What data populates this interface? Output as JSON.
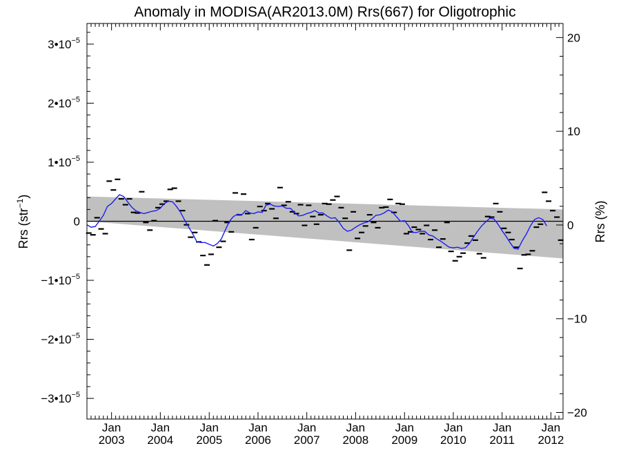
{
  "chart_data": {
    "type": "scatter",
    "title": "Anomaly in MODISA(AR2013.0M) Rrs(667) for Oligotrophic",
    "ylabel_left": {
      "base": "Rrs (str",
      "sup": "−1",
      "end": ")"
    },
    "ylabel_right": "Rrs (%)",
    "ylim_left": [
      -3.35e-05,
      3.35e-05
    ],
    "ylim_right": [
      -20.7,
      21.5
    ],
    "xlim": [
      "2002-07-01",
      "2012-04-01"
    ],
    "left_ticks": [
      {
        "value": 3e-05,
        "coef": "3•10",
        "exp": "−5"
      },
      {
        "value": 2e-05,
        "coef": "2•10",
        "exp": "−5"
      },
      {
        "value": 1e-05,
        "coef": "1•10",
        "exp": "−5"
      },
      {
        "value": 0,
        "coef": "0",
        "exp": ""
      },
      {
        "value": -1e-05,
        "coef": "−1•10",
        "exp": "−5"
      },
      {
        "value": -2e-05,
        "coef": "−2•10",
        "exp": "−5"
      },
      {
        "value": -3e-05,
        "coef": "−3•10",
        "exp": "−5"
      }
    ],
    "right_ticks": [
      {
        "value": 20,
        "label": "20"
      },
      {
        "value": 10,
        "label": "10"
      },
      {
        "value": 0,
        "label": "0"
      },
      {
        "value": -10,
        "label": "−10"
      },
      {
        "value": -20,
        "label": "−20"
      }
    ],
    "x_ticks": [
      {
        "date": "2003-01-01",
        "month": "Jan",
        "year": "2003"
      },
      {
        "date": "2004-01-01",
        "month": "Jan",
        "year": "2004"
      },
      {
        "date": "2005-01-01",
        "month": "Jan",
        "year": "2005"
      },
      {
        "date": "2006-01-01",
        "month": "Jan",
        "year": "2006"
      },
      {
        "date": "2007-01-01",
        "month": "Jan",
        "year": "2007"
      },
      {
        "date": "2008-01-01",
        "month": "Jan",
        "year": "2008"
      },
      {
        "date": "2009-01-01",
        "month": "Jan",
        "year": "2009"
      },
      {
        "date": "2010-01-01",
        "month": "Jan",
        "year": "2010"
      },
      {
        "date": "2011-01-01",
        "month": "Jan",
        "year": "2011"
      },
      {
        "date": "2012-01-01",
        "month": "Jan",
        "year": "2012"
      }
    ],
    "zero_line": 0,
    "band": {
      "color": "#c0c0c0",
      "upper": [
        [
          "2002-07-01",
          4.2e-06
        ],
        [
          "2012-04-01",
          2e-06
        ]
      ],
      "lower": [
        [
          "2002-07-01",
          0
        ],
        [
          "2012-04-01",
          -6.3e-06
        ]
      ]
    },
    "series": [
      {
        "style": "dash-markers",
        "color": "#000000",
        "points": [
          [
            "2002-07-15",
            -2e-06
          ],
          [
            "2002-08-15",
            -2.3e-06
          ],
          [
            "2002-09-15",
            6e-07
          ],
          [
            "2002-10-15",
            -1.3e-06
          ],
          [
            "2002-11-15",
            -2.1e-06
          ],
          [
            "2002-12-15",
            6.8e-06
          ],
          [
            "2003-01-15",
            5.3e-06
          ],
          [
            "2003-02-15",
            7.1e-06
          ],
          [
            "2003-03-15",
            3.8e-06
          ],
          [
            "2003-04-15",
            2.8e-06
          ],
          [
            "2003-05-15",
            3.8e-06
          ],
          [
            "2003-06-15",
            1.5e-06
          ],
          [
            "2003-07-15",
            1.4e-06
          ],
          [
            "2003-08-15",
            5e-06
          ],
          [
            "2003-09-15",
            -2e-07
          ],
          [
            "2003-10-15",
            -1.5e-06
          ],
          [
            "2003-11-15",
            1e-07
          ],
          [
            "2003-12-15",
            2.3e-06
          ],
          [
            "2004-01-15",
            2.9e-06
          ],
          [
            "2004-02-15",
            3.4e-06
          ],
          [
            "2004-03-15",
            5.4e-06
          ],
          [
            "2004-04-15",
            5.6e-06
          ],
          [
            "2004-05-15",
            3.4e-06
          ],
          [
            "2004-06-15",
            1.8e-06
          ],
          [
            "2004-07-15",
            -6e-07
          ],
          [
            "2004-08-15",
            -2.7e-06
          ],
          [
            "2004-09-15",
            -1.9e-06
          ],
          [
            "2004-10-15",
            -3.5e-06
          ],
          [
            "2004-11-15",
            -5.8e-06
          ],
          [
            "2004-12-15",
            -7.4e-06
          ],
          [
            "2005-01-15",
            -5.6e-06
          ],
          [
            "2005-02-15",
            1e-07
          ],
          [
            "2005-03-15",
            -4.4e-06
          ],
          [
            "2005-04-15",
            -3.4e-06
          ],
          [
            "2005-05-15",
            -2e-07
          ],
          [
            "2005-06-15",
            -1.8e-06
          ],
          [
            "2005-07-15",
            4.8e-06
          ],
          [
            "2005-08-15",
            1.1e-06
          ],
          [
            "2005-09-15",
            4.6e-06
          ],
          [
            "2005-10-15",
            1.3e-06
          ],
          [
            "2005-11-15",
            -3.1e-06
          ],
          [
            "2005-12-15",
            -1.1e-06
          ],
          [
            "2006-01-15",
            2.5e-06
          ],
          [
            "2006-02-15",
            1.8e-06
          ],
          [
            "2006-03-15",
            3e-06
          ],
          [
            "2006-04-15",
            2.1e-06
          ],
          [
            "2006-05-15",
            5e-07
          ],
          [
            "2006-06-15",
            5.7e-06
          ],
          [
            "2006-07-15",
            2.7e-06
          ],
          [
            "2006-08-15",
            3.3e-06
          ],
          [
            "2006-09-15",
            1.6e-06
          ],
          [
            "2006-10-15",
            1.3e-06
          ],
          [
            "2006-11-15",
            2.8e-06
          ],
          [
            "2006-12-15",
            -7e-07
          ],
          [
            "2007-01-15",
            2.7e-06
          ],
          [
            "2007-02-15",
            8e-07
          ],
          [
            "2007-03-15",
            -5e-07
          ],
          [
            "2007-04-15",
            1.1e-06
          ],
          [
            "2007-05-15",
            3e-06
          ],
          [
            "2007-06-15",
            2.9e-06
          ],
          [
            "2007-07-15",
            3.6e-06
          ],
          [
            "2007-08-15",
            4.2e-06
          ],
          [
            "2007-09-15",
            2.3e-06
          ],
          [
            "2007-10-15",
            5e-07
          ],
          [
            "2007-11-15",
            -4.9e-06
          ],
          [
            "2007-12-15",
            1.6e-06
          ],
          [
            "2008-01-15",
            -2.9e-06
          ],
          [
            "2008-02-15",
            -1.9e-06
          ],
          [
            "2008-03-15",
            -8e-07
          ],
          [
            "2008-04-15",
            1.1e-06
          ],
          [
            "2008-05-15",
            -2e-07
          ],
          [
            "2008-06-15",
            -1.1e-06
          ],
          [
            "2008-07-15",
            2.3e-06
          ],
          [
            "2008-08-15",
            2.4e-06
          ],
          [
            "2008-09-15",
            3.7e-06
          ],
          [
            "2008-10-15",
            1.5e-06
          ],
          [
            "2008-11-15",
            3e-06
          ],
          [
            "2008-12-15",
            2.9e-06
          ],
          [
            "2009-01-15",
            -2.1e-06
          ],
          [
            "2009-02-15",
            -1.8e-06
          ],
          [
            "2009-03-15",
            -1e-06
          ],
          [
            "2009-04-15",
            -1.4e-06
          ],
          [
            "2009-05-15",
            -2.1e-06
          ],
          [
            "2009-06-15",
            -7e-07
          ],
          [
            "2009-07-15",
            -3.1e-06
          ],
          [
            "2009-08-15",
            -1.5e-06
          ],
          [
            "2009-09-15",
            -4.4e-06
          ],
          [
            "2009-10-15",
            -3e-06
          ],
          [
            "2009-11-15",
            -2e-07
          ],
          [
            "2009-12-15",
            -5.1e-06
          ],
          [
            "2010-01-15",
            -6.7e-06
          ],
          [
            "2010-02-15",
            -6e-06
          ],
          [
            "2010-03-15",
            -5.4e-06
          ],
          [
            "2010-04-15",
            -3.7e-06
          ],
          [
            "2010-05-15",
            -2.5e-06
          ],
          [
            "2010-06-15",
            -3.2e-06
          ],
          [
            "2010-07-15",
            -5.5e-06
          ],
          [
            "2010-08-15",
            -6.2e-06
          ],
          [
            "2010-09-15",
            8e-07
          ],
          [
            "2010-10-15",
            7e-07
          ],
          [
            "2010-11-15",
            3e-06
          ],
          [
            "2010-12-15",
            1.6e-06
          ],
          [
            "2011-01-15",
            -1.2e-06
          ],
          [
            "2011-02-15",
            -1.9e-06
          ],
          [
            "2011-03-15",
            -3.1e-06
          ],
          [
            "2011-04-15",
            -4.4e-06
          ],
          [
            "2011-05-15",
            -8e-06
          ],
          [
            "2011-06-15",
            -5.7e-06
          ],
          [
            "2011-07-15",
            -5.6e-06
          ],
          [
            "2011-08-15",
            -5e-06
          ],
          [
            "2011-09-15",
            -1e-06
          ],
          [
            "2011-10-15",
            -5e-07
          ],
          [
            "2011-11-15",
            4.9e-06
          ],
          [
            "2011-12-15",
            3.4e-06
          ],
          [
            "2012-01-15",
            1.8e-06
          ],
          [
            "2012-02-15",
            7e-07
          ],
          [
            "2012-03-15",
            -3.2e-06
          ]
        ]
      },
      {
        "style": "line",
        "color": "#1c1cf0",
        "points": [
          [
            "2002-07-01",
            -6e-07
          ],
          [
            "2002-08-01",
            -1e-06
          ],
          [
            "2002-09-01",
            -9e-07
          ],
          [
            "2002-10-01",
            0.0
          ],
          [
            "2002-11-01",
            1e-06
          ],
          [
            "2002-12-01",
            2.5e-06
          ],
          [
            "2003-01-01",
            3e-06
          ],
          [
            "2003-02-01",
            3.8e-06
          ],
          [
            "2003-03-01",
            4.5e-06
          ],
          [
            "2003-04-01",
            4.2e-06
          ],
          [
            "2003-05-01",
            3.3e-06
          ],
          [
            "2003-06-01",
            2.4e-06
          ],
          [
            "2003-07-01",
            1.8e-06
          ],
          [
            "2003-08-01",
            1.5e-06
          ],
          [
            "2003-09-01",
            1.3e-06
          ],
          [
            "2003-10-01",
            1.5e-06
          ],
          [
            "2003-11-01",
            1.7e-06
          ],
          [
            "2003-12-01",
            1.8e-06
          ],
          [
            "2004-01-01",
            2.2e-06
          ],
          [
            "2004-02-01",
            3e-06
          ],
          [
            "2004-03-01",
            3.4e-06
          ],
          [
            "2004-04-01",
            3.3e-06
          ],
          [
            "2004-05-01",
            2.5e-06
          ],
          [
            "2004-06-01",
            1.5e-06
          ],
          [
            "2004-07-01",
            2e-07
          ],
          [
            "2004-08-01",
            -1e-06
          ],
          [
            "2004-09-01",
            -2.2e-06
          ],
          [
            "2004-10-01",
            -3.5e-06
          ],
          [
            "2004-11-01",
            -3.6e-06
          ],
          [
            "2004-12-01",
            -3.6e-06
          ],
          [
            "2005-01-01",
            -3.9e-06
          ],
          [
            "2005-02-01",
            -4.2e-06
          ],
          [
            "2005-03-01",
            -3.8e-06
          ],
          [
            "2005-04-01",
            -3e-06
          ],
          [
            "2005-05-01",
            -1.5e-06
          ],
          [
            "2005-06-01",
            0.0
          ],
          [
            "2005-07-01",
            8e-07
          ],
          [
            "2005-08-01",
            1.2e-06
          ],
          [
            "2005-09-01",
            1.1e-06
          ],
          [
            "2005-10-01",
            1.8e-06
          ],
          [
            "2005-11-01",
            1.4e-06
          ],
          [
            "2005-12-01",
            1.3e-06
          ],
          [
            "2006-01-01",
            1.6e-06
          ],
          [
            "2006-02-01",
            1.5e-06
          ],
          [
            "2006-03-01",
            2.7e-06
          ],
          [
            "2006-04-01",
            2.9e-06
          ],
          [
            "2006-05-01",
            2.6e-06
          ],
          [
            "2006-06-01",
            2.5e-06
          ],
          [
            "2006-07-01",
            2.6e-06
          ],
          [
            "2006-08-01",
            2.2e-06
          ],
          [
            "2006-09-01",
            2.2e-06
          ],
          [
            "2006-10-01",
            1.5e-06
          ],
          [
            "2006-11-01",
            9e-07
          ],
          [
            "2006-12-01",
            1e-06
          ],
          [
            "2007-01-01",
            1.3e-06
          ],
          [
            "2007-02-01",
            1.5e-06
          ],
          [
            "2007-03-01",
            1.8e-06
          ],
          [
            "2007-04-01",
            1.4e-06
          ],
          [
            "2007-05-01",
            1.4e-06
          ],
          [
            "2007-06-01",
            9e-07
          ],
          [
            "2007-07-01",
            5e-07
          ],
          [
            "2007-08-01",
            6e-07
          ],
          [
            "2007-09-01",
            -2e-07
          ],
          [
            "2007-10-01",
            -1.2e-06
          ],
          [
            "2007-11-01",
            -1.7e-06
          ],
          [
            "2007-12-01",
            -1.5e-06
          ],
          [
            "2008-01-01",
            -1e-06
          ],
          [
            "2008-02-01",
            -6e-07
          ],
          [
            "2008-03-01",
            -3e-07
          ],
          [
            "2008-04-01",
            -1e-07
          ],
          [
            "2008-05-01",
            4e-07
          ],
          [
            "2008-06-01",
            1e-06
          ],
          [
            "2008-07-01",
            1.1e-06
          ],
          [
            "2008-08-01",
            1.4e-06
          ],
          [
            "2008-09-01",
            1.9e-06
          ],
          [
            "2008-10-01",
            1.6e-06
          ],
          [
            "2008-11-01",
            8e-07
          ],
          [
            "2008-12-01",
            0.0
          ],
          [
            "2009-01-01",
            1e-07
          ],
          [
            "2009-02-01",
            -8e-07
          ],
          [
            "2009-03-01",
            -1.9e-06
          ],
          [
            "2009-04-01",
            -1.9e-06
          ],
          [
            "2009-05-01",
            -1.7e-06
          ],
          [
            "2009-06-01",
            -1.7e-06
          ],
          [
            "2009-07-01",
            -2.3e-06
          ],
          [
            "2009-08-01",
            -2.5e-06
          ],
          [
            "2009-09-01",
            -3e-06
          ],
          [
            "2009-10-01",
            -3.4e-06
          ],
          [
            "2009-11-01",
            -3.9e-06
          ],
          [
            "2009-12-01",
            -4.4e-06
          ],
          [
            "2010-01-01",
            -4.5e-06
          ],
          [
            "2010-02-01",
            -4.4e-06
          ],
          [
            "2010-03-01",
            -4.6e-06
          ],
          [
            "2010-04-01",
            -4.5e-06
          ],
          [
            "2010-05-01",
            -3.8e-06
          ],
          [
            "2010-06-01",
            -2.7e-06
          ],
          [
            "2010-07-01",
            -1.7e-06
          ],
          [
            "2010-08-01",
            -8e-07
          ],
          [
            "2010-09-01",
            -1e-07
          ],
          [
            "2010-10-01",
            5e-07
          ],
          [
            "2010-11-01",
            4e-07
          ],
          [
            "2010-12-01",
            -5e-07
          ],
          [
            "2011-01-01",
            -1.6e-06
          ],
          [
            "2011-02-01",
            -2.6e-06
          ],
          [
            "2011-03-01",
            -3.6e-06
          ],
          [
            "2011-04-01",
            -4.6e-06
          ],
          [
            "2011-05-01",
            -4.7e-06
          ],
          [
            "2011-06-01",
            -3.3e-06
          ],
          [
            "2011-07-01",
            -2.2e-06
          ],
          [
            "2011-08-01",
            -8e-07
          ],
          [
            "2011-09-01",
            3e-07
          ],
          [
            "2011-10-01",
            6e-07
          ],
          [
            "2011-11-01",
            3e-07
          ],
          [
            "2011-12-01",
            -8e-07
          ]
        ]
      }
    ]
  }
}
